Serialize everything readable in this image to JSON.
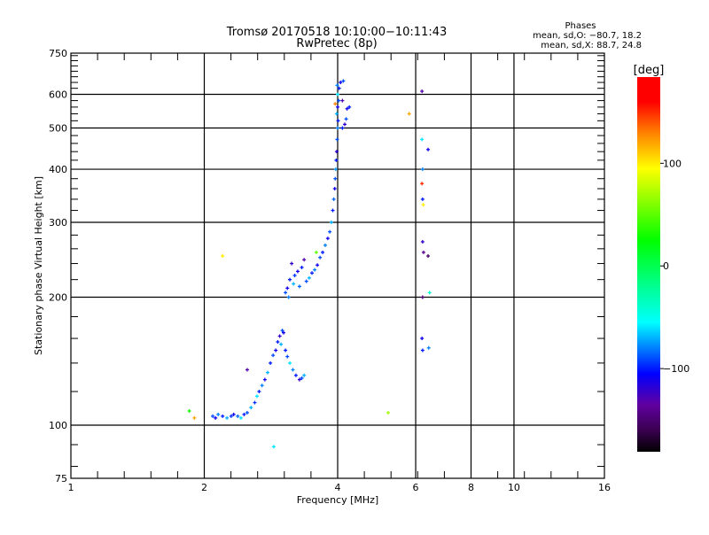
{
  "chart_data": {
    "type": "scatter",
    "title": "Tromsø 20170518 10:10:00−10:11:43",
    "subtitle": "RwPretec (8p)",
    "info": {
      "heading": "Phases",
      "line_o": "mean, sd,O: −80.7, 18.2",
      "line_x": "mean, sd,X: 88.7, 24.8"
    },
    "xlabel": "Frequency [MHz]",
    "ylabel": "Stationary phase Virtual Height [km]",
    "xscale": "log",
    "yscale": "log",
    "xlim": [
      1,
      16
    ],
    "ylim": [
      75,
      750
    ],
    "xticks": [
      1,
      2,
      4,
      6,
      8,
      10,
      16
    ],
    "yticks": [
      75,
      100,
      200,
      300,
      400,
      500,
      600,
      750
    ],
    "x_grid": [
      2,
      4,
      6,
      8,
      10
    ],
    "y_grid": [
      100,
      200,
      300,
      400,
      500,
      600
    ],
    "colorbar": {
      "label": "[deg]",
      "range": [
        -181,
        184
      ],
      "ticks": [
        100,
        0,
        -100
      ],
      "tick_labels": [
        "100",
        "0",
        "−100"
      ],
      "colors": [
        "#000000",
        "#3a0050",
        "#6000a0",
        "#0000ff",
        "#0080ff",
        "#00ffff",
        "#00ff80",
        "#00ff00",
        "#80ff00",
        "#ffff00",
        "#ff8000",
        "#ff0000",
        "#ff0000"
      ],
      "stops": [
        -181,
        -160,
        -135,
        -105,
        -80,
        -55,
        -15,
        25,
        60,
        95,
        130,
        160,
        184
      ]
    },
    "point_fields": [
      "freq_mhz",
      "height_km",
      "phase_deg"
    ],
    "points": [
      [
        2.09,
        105,
        -90
      ],
      [
        2.12,
        104,
        -110
      ],
      [
        2.15,
        106,
        -80
      ],
      [
        2.2,
        105,
        -100
      ],
      [
        2.25,
        104,
        -70
      ],
      [
        2.3,
        105,
        -95
      ],
      [
        2.33,
        106,
        -110
      ],
      [
        2.38,
        105,
        -85
      ],
      [
        2.42,
        104,
        -60
      ],
      [
        2.46,
        106,
        -100
      ],
      [
        2.5,
        107,
        -90
      ],
      [
        2.55,
        110,
        -70
      ],
      [
        2.6,
        113,
        -95
      ],
      [
        2.63,
        117,
        -60
      ],
      [
        2.66,
        120,
        -100
      ],
      [
        2.7,
        124,
        -80
      ],
      [
        2.74,
        128,
        -110
      ],
      [
        2.78,
        133,
        -70
      ],
      [
        2.82,
        140,
        -100
      ],
      [
        2.86,
        146,
        -90
      ],
      [
        2.5,
        135,
        -130
      ],
      [
        2.9,
        150,
        -110
      ],
      [
        2.93,
        157,
        -100
      ],
      [
        2.96,
        162,
        -120
      ],
      [
        3.0,
        167,
        -90
      ],
      [
        3.02,
        165,
        -110
      ],
      [
        2.98,
        155,
        -70
      ],
      [
        3.05,
        150,
        -100
      ],
      [
        3.08,
        145,
        -90
      ],
      [
        3.12,
        140,
        -60
      ],
      [
        3.17,
        135,
        -80
      ],
      [
        3.22,
        131,
        -100
      ],
      [
        3.28,
        128,
        -120
      ],
      [
        3.32,
        129,
        -90
      ],
      [
        3.36,
        131,
        -70
      ],
      [
        3.05,
        205,
        -90
      ],
      [
        3.08,
        210,
        -110
      ],
      [
        3.1,
        200,
        -80
      ],
      [
        3.12,
        220,
        -100
      ],
      [
        3.15,
        240,
        -120
      ],
      [
        3.18,
        215,
        -70
      ],
      [
        3.2,
        225,
        -95
      ],
      [
        3.25,
        230,
        -110
      ],
      [
        3.28,
        212,
        -85
      ],
      [
        3.32,
        235,
        -100
      ],
      [
        3.36,
        245,
        -130
      ],
      [
        3.4,
        218,
        -90
      ],
      [
        3.45,
        222,
        -70
      ],
      [
        3.5,
        228,
        -100
      ],
      [
        3.55,
        232,
        -80
      ],
      [
        3.6,
        238,
        -110
      ],
      [
        3.65,
        248,
        -90
      ],
      [
        3.58,
        255,
        50
      ],
      [
        3.7,
        255,
        -100
      ],
      [
        3.75,
        265,
        -80
      ],
      [
        3.8,
        275,
        -110
      ],
      [
        3.84,
        285,
        -90
      ],
      [
        3.87,
        300,
        -70
      ],
      [
        3.9,
        320,
        -100
      ],
      [
        3.92,
        340,
        -85
      ],
      [
        3.94,
        360,
        -110
      ],
      [
        3.95,
        380,
        -90
      ],
      [
        3.96,
        400,
        -75
      ],
      [
        3.97,
        420,
        -100
      ],
      [
        3.98,
        440,
        -120
      ],
      [
        3.99,
        470,
        -90
      ],
      [
        4.0,
        500,
        -80
      ],
      [
        4.01,
        520,
        -100
      ],
      [
        3.98,
        540,
        -70
      ],
      [
        4.0,
        560,
        -110
      ],
      [
        4.02,
        580,
        -90
      ],
      [
        4.0,
        600,
        -60
      ],
      [
        4.03,
        620,
        -100
      ],
      [
        3.99,
        630,
        -80
      ],
      [
        4.06,
        640,
        -110
      ],
      [
        4.12,
        645,
        -90
      ],
      [
        4.1,
        500,
        -100
      ],
      [
        4.15,
        510,
        -120
      ],
      [
        4.18,
        525,
        -90
      ],
      [
        4.2,
        555,
        -110
      ],
      [
        4.25,
        560,
        -100
      ],
      [
        4.1,
        580,
        -130
      ],
      [
        3.95,
        570,
        130
      ],
      [
        1.85,
        108,
        30
      ],
      [
        1.9,
        104,
        120
      ],
      [
        2.2,
        250,
        100
      ],
      [
        5.2,
        107,
        70
      ],
      [
        2.87,
        89,
        -60
      ],
      [
        5.8,
        540,
        120
      ],
      [
        6.2,
        610,
        -130
      ],
      [
        6.2,
        470,
        -60
      ],
      [
        6.22,
        400,
        -80
      ],
      [
        6.2,
        370,
        150
      ],
      [
        6.22,
        340,
        -100
      ],
      [
        6.24,
        330,
        100
      ],
      [
        6.22,
        270,
        -120
      ],
      [
        6.25,
        255,
        -140
      ],
      [
        6.22,
        200,
        -150
      ],
      [
        6.2,
        160,
        -110
      ],
      [
        6.22,
        150,
        -100
      ],
      [
        6.4,
        445,
        -110
      ],
      [
        6.4,
        250,
        -150
      ],
      [
        6.45,
        205,
        -40
      ],
      [
        6.42,
        152,
        -80
      ]
    ]
  }
}
